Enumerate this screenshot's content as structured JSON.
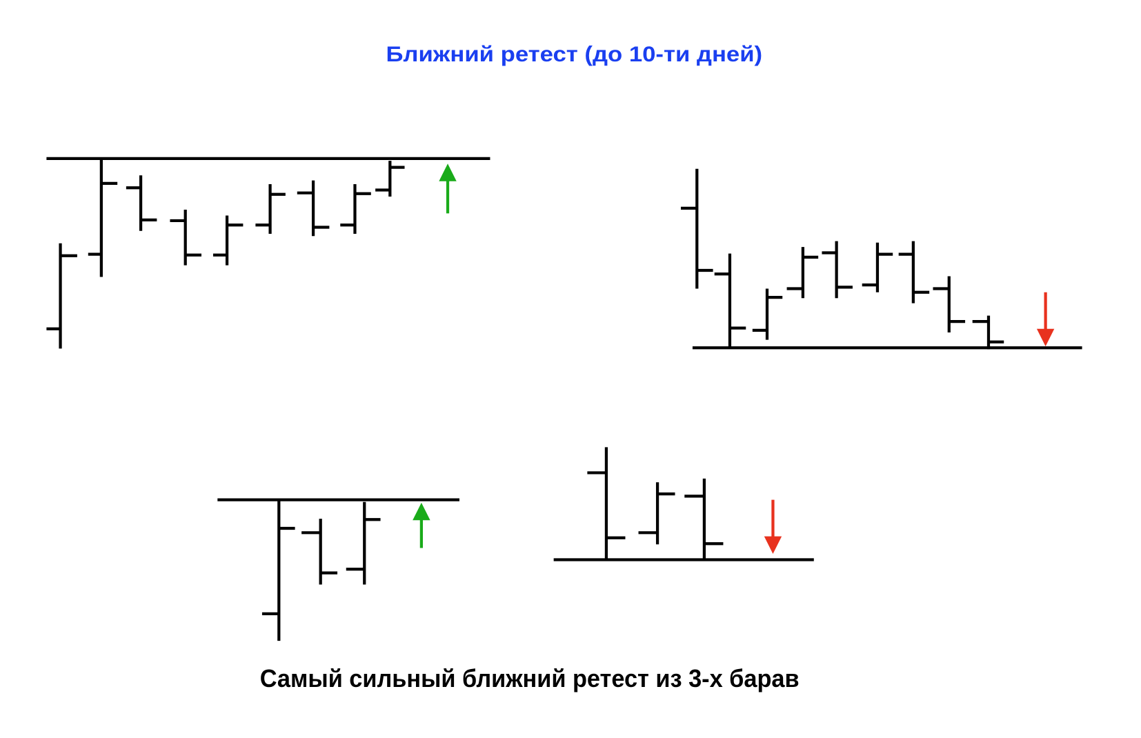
{
  "title": "Ближний ретест (до 10-ти дней)",
  "caption": "Самый сильный ближний ретест из 3-х барав"
}
